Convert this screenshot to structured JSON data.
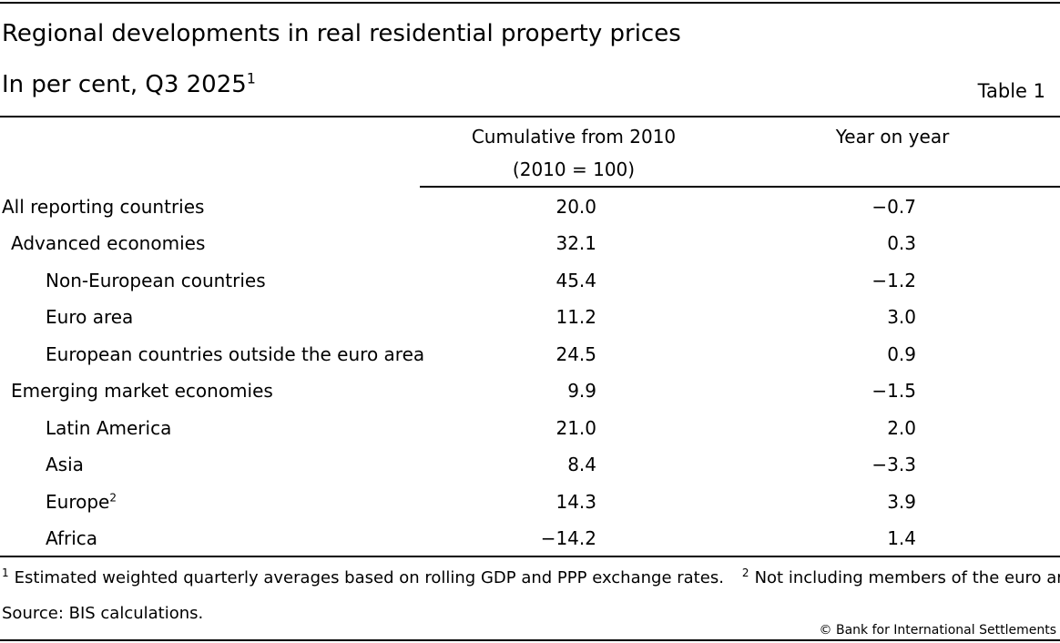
{
  "header": {
    "title": "Regional developments in real residential property prices",
    "subtitle": "In per cent, Q3 2025",
    "subtitle_note": "1",
    "table_label": "Table 1"
  },
  "columns": {
    "cumulative": "Cumulative from 2010",
    "cumulative_sub": "(2010 = 100)",
    "yoy": "Year on year"
  },
  "rows": [
    {
      "label": "All reporting countries",
      "note": "",
      "cumulative": "20.0",
      "yoy": "−0.7",
      "level": 0
    },
    {
      "label": "Advanced economies",
      "note": "",
      "cumulative": "32.1",
      "yoy": "0.3",
      "level": 1
    },
    {
      "label": "Non-European countries",
      "note": "",
      "cumulative": "45.4",
      "yoy": "−1.2",
      "level": 2
    },
    {
      "label": "Euro area",
      "note": "",
      "cumulative": "11.2",
      "yoy": "3.0",
      "level": 2
    },
    {
      "label": "European countries outside the euro area",
      "note": "",
      "cumulative": "24.5",
      "yoy": "0.9",
      "level": 2
    },
    {
      "label": "Emerging market economies",
      "note": "",
      "cumulative": "9.9",
      "yoy": "−1.5",
      "level": 1
    },
    {
      "label": "Latin America",
      "note": "",
      "cumulative": "21.0",
      "yoy": "2.0",
      "level": 2
    },
    {
      "label": "Asia",
      "note": "",
      "cumulative": "8.4",
      "yoy": "−3.3",
      "level": 2
    },
    {
      "label": "Europe",
      "note": "2",
      "cumulative": "14.3",
      "yoy": "3.9",
      "level": 2
    },
    {
      "label": "Africa",
      "note": "",
      "cumulative": "−14.2",
      "yoy": "1.4",
      "level": 2
    }
  ],
  "footnotes": [
    {
      "mark": "1",
      "text": "Estimated weighted quarterly averages based on rolling GDP and PPP exchange rates."
    },
    {
      "mark": "2",
      "text": "Not including members of the euro area."
    }
  ],
  "source": "Source: BIS calculations.",
  "copyright": "© Bank for International Settlements"
}
